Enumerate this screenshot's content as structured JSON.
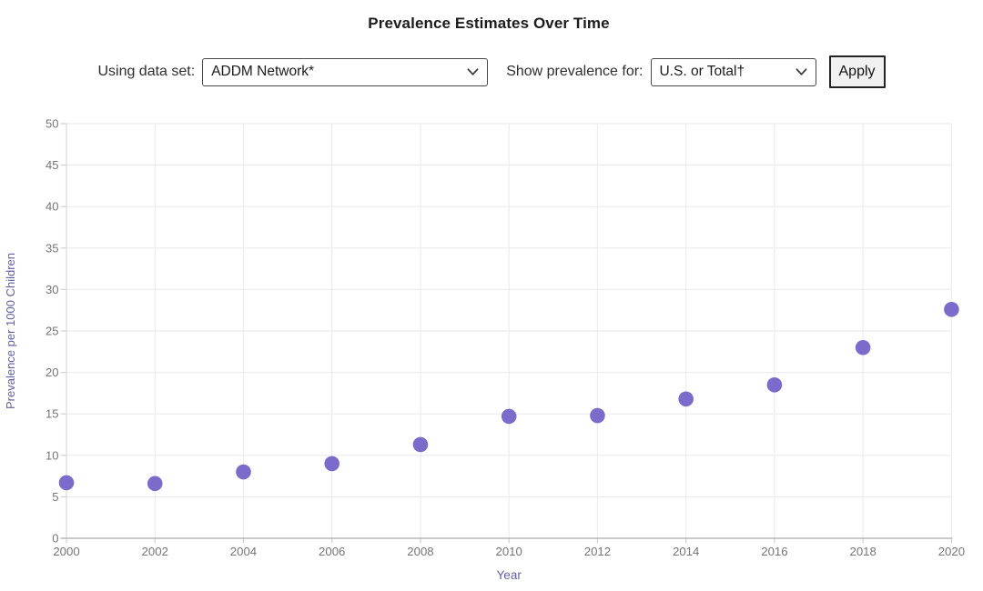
{
  "title": "Prevalence Estimates Over Time",
  "controls": {
    "dataset_label": "Using data set:",
    "dataset_value": "ADDM Network*",
    "prevalence_label": "Show prevalence for:",
    "prevalence_value": "U.S. or Total†",
    "apply_label": "Apply"
  },
  "colors": {
    "point": "#7c6bcb",
    "axis_title": "#5f5fa7",
    "tick_label": "#757575",
    "grid": "#ececf1",
    "y_axis_line": "#d9d9e2",
    "x_axis_line": "#b9b9b9",
    "tick_mark": "#cfcfcf"
  },
  "chart_data": {
    "type": "scatter",
    "title": "Prevalence Estimates Over Time",
    "xlabel": "Year",
    "ylabel": "Prevalence per 1000 Children",
    "x": [
      2000,
      2002,
      2004,
      2006,
      2008,
      2010,
      2012,
      2014,
      2016,
      2018,
      2020
    ],
    "y": [
      6.7,
      6.6,
      8.0,
      9.0,
      11.3,
      14.7,
      14.8,
      16.8,
      18.5,
      23.0,
      27.6
    ],
    "xlim": [
      2000,
      2020
    ],
    "ylim": [
      0,
      50
    ],
    "x_ticks": [
      2000,
      2002,
      2004,
      2006,
      2008,
      2010,
      2012,
      2014,
      2016,
      2018,
      2020
    ],
    "y_ticks": [
      0,
      5,
      10,
      15,
      20,
      25,
      30,
      35,
      40,
      45,
      50
    ],
    "grid": true,
    "legend": false,
    "marker_radius": 8.3
  }
}
